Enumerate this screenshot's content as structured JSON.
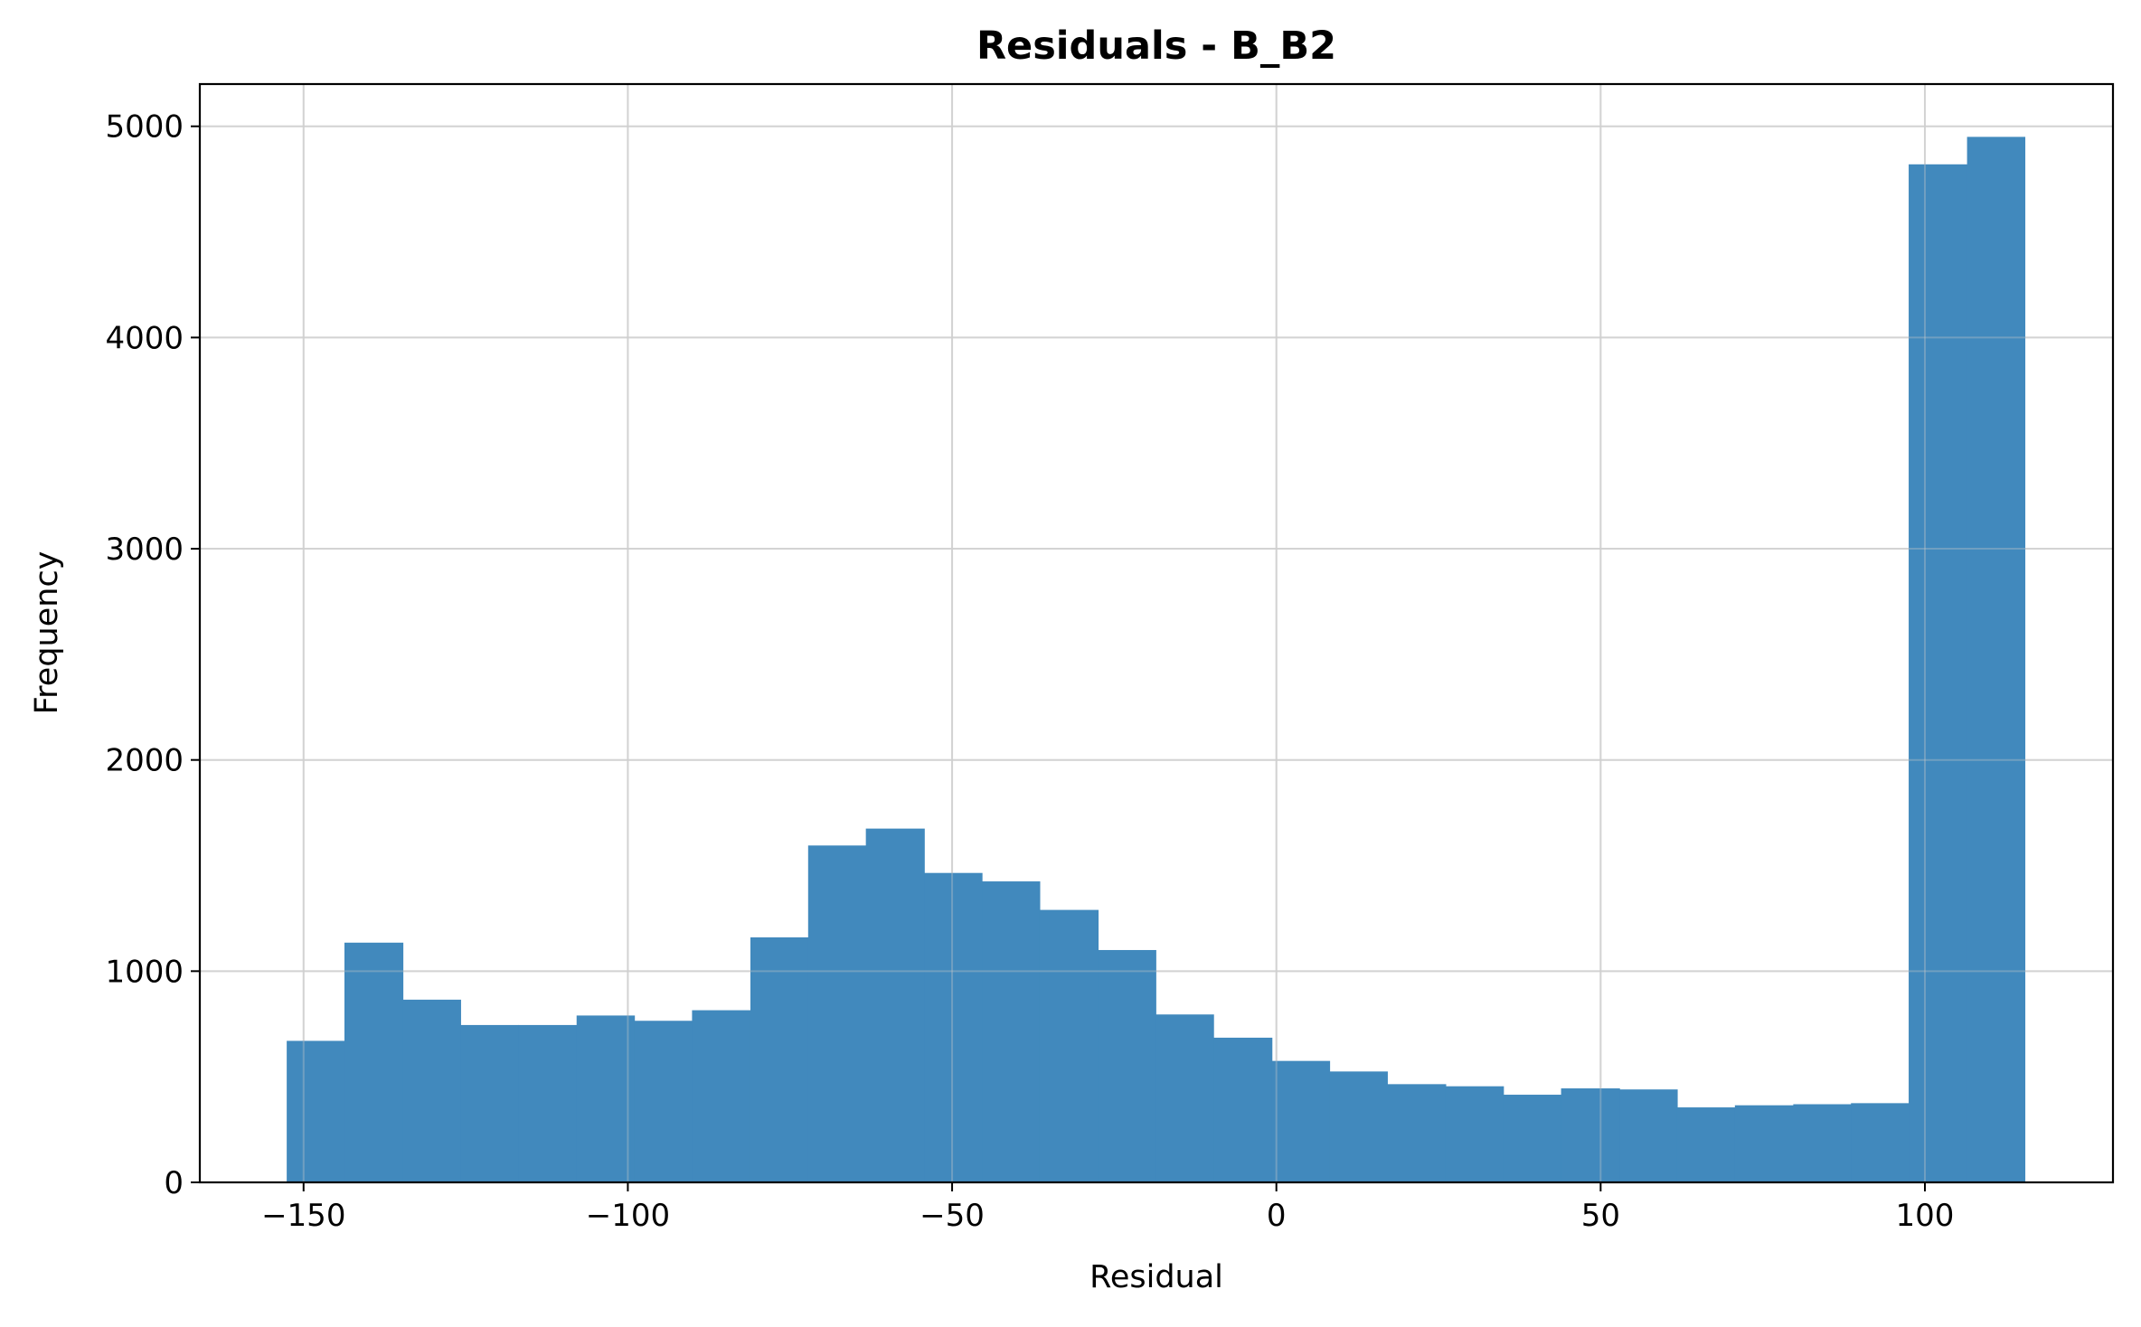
{
  "chart_data": {
    "type": "bar",
    "title": "Residuals - B_B2",
    "xlabel": "Residual",
    "ylabel": "Frequency",
    "xlim": [
      -166,
      129
    ],
    "ylim": [
      0,
      5200
    ],
    "bar_color": "#4189bd",
    "grid": true,
    "legend": "none",
    "xticks": [
      -150,
      -100,
      -50,
      0,
      50,
      100
    ],
    "xtick_labels": [
      "−150",
      "−100",
      "−50",
      "0",
      "50",
      "100"
    ],
    "yticks": [
      0,
      1000,
      2000,
      3000,
      4000,
      5000
    ],
    "ytick_labels": [
      "0",
      "1000",
      "2000",
      "3000",
      "4000",
      "5000"
    ],
    "bins": [
      {
        "x0": -152.6,
        "x1": -143.7,
        "count": 670
      },
      {
        "x0": -143.7,
        "x1": -134.7,
        "count": 1135
      },
      {
        "x0": -134.7,
        "x1": -125.8,
        "count": 865
      },
      {
        "x0": -125.8,
        "x1": -116.9,
        "count": 745
      },
      {
        "x0": -116.9,
        "x1": -107.9,
        "count": 745
      },
      {
        "x0": -107.9,
        "x1": -99.0,
        "count": 790
      },
      {
        "x0": -99.0,
        "x1": -90.1,
        "count": 765
      },
      {
        "x0": -90.1,
        "x1": -81.1,
        "count": 815
      },
      {
        "x0": -81.1,
        "x1": -72.2,
        "count": 1160
      },
      {
        "x0": -72.2,
        "x1": -63.3,
        "count": 1595
      },
      {
        "x0": -63.3,
        "x1": -54.3,
        "count": 1675
      },
      {
        "x0": -54.3,
        "x1": -45.4,
        "count": 1465
      },
      {
        "x0": -45.4,
        "x1": -36.5,
        "count": 1425
      },
      {
        "x0": -36.5,
        "x1": -27.5,
        "count": 1290
      },
      {
        "x0": -27.5,
        "x1": -18.6,
        "count": 1100
      },
      {
        "x0": -18.6,
        "x1": -9.7,
        "count": 795
      },
      {
        "x0": -9.7,
        "x1": -0.7,
        "count": 685
      },
      {
        "x0": -0.7,
        "x1": 8.2,
        "count": 575
      },
      {
        "x0": 8.2,
        "x1": 17.1,
        "count": 525
      },
      {
        "x0": 17.1,
        "x1": 26.1,
        "count": 465
      },
      {
        "x0": 26.1,
        "x1": 35.0,
        "count": 455
      },
      {
        "x0": 35.0,
        "x1": 43.9,
        "count": 415
      },
      {
        "x0": 43.9,
        "x1": 52.9,
        "count": 445
      },
      {
        "x0": 52.9,
        "x1": 61.8,
        "count": 440
      },
      {
        "x0": 61.8,
        "x1": 70.7,
        "count": 355
      },
      {
        "x0": 70.7,
        "x1": 79.7,
        "count": 365
      },
      {
        "x0": 79.7,
        "x1": 88.6,
        "count": 370
      },
      {
        "x0": 88.6,
        "x1": 97.5,
        "count": 375
      },
      {
        "x0": 97.5,
        "x1": 106.5,
        "count": 4820
      },
      {
        "x0": 106.5,
        "x1": 115.4,
        "count": 4950
      }
    ]
  }
}
